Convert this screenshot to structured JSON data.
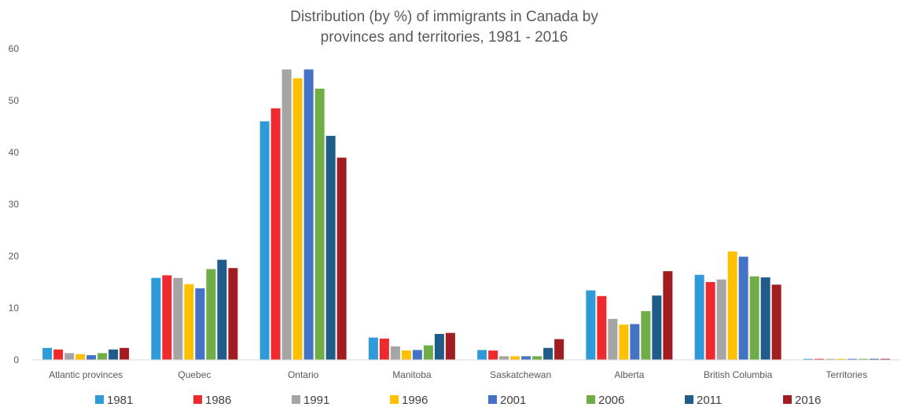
{
  "chart_data": {
    "type": "bar",
    "title": "Distribution (by %) of immigrants in Canada by provinces and territories, 1981 - 2016",
    "title_lines": [
      "Distribution (by %) of immigrants in Canada by",
      "provinces and territories, 1981 - 2016"
    ],
    "xlabel": "",
    "ylabel": "",
    "ylim": [
      0,
      60
    ],
    "yticks": [
      0,
      10,
      20,
      30,
      40,
      50,
      60
    ],
    "grid": false,
    "legend_position": "bottom",
    "categories": [
      "Atlantic provinces",
      "Quebec",
      "Ontario",
      "Manitoba",
      "Saskatchewan",
      "Alberta",
      "British Columbia",
      "Territories"
    ],
    "series": [
      {
        "name": "1981",
        "color": "#2E9AD8",
        "values": [
          2.3,
          15.8,
          46.0,
          4.3,
          1.9,
          13.4,
          16.4,
          0.2
        ]
      },
      {
        "name": "1986",
        "color": "#EE2A2E",
        "values": [
          2.0,
          16.3,
          48.5,
          4.1,
          1.8,
          12.3,
          15.0,
          0.2
        ]
      },
      {
        "name": "1991",
        "color": "#A5A5A5",
        "values": [
          1.3,
          15.8,
          56.0,
          2.6,
          0.7,
          7.9,
          15.5,
          0.2
        ]
      },
      {
        "name": "1996",
        "color": "#FFC000",
        "values": [
          1.1,
          14.6,
          54.3,
          1.8,
          0.7,
          6.8,
          20.9,
          0.2
        ]
      },
      {
        "name": "2001",
        "color": "#4472C4",
        "values": [
          0.9,
          13.8,
          56.0,
          1.9,
          0.7,
          6.9,
          19.9,
          0.2
        ]
      },
      {
        "name": "2006",
        "color": "#70AD47",
        "values": [
          1.3,
          17.5,
          52.3,
          2.8,
          0.7,
          9.4,
          16.1,
          0.2
        ]
      },
      {
        "name": "2011",
        "color": "#1F5C8A",
        "values": [
          2.0,
          19.3,
          43.2,
          5.0,
          2.3,
          12.4,
          15.9,
          0.2
        ]
      },
      {
        "name": "2016",
        "color": "#A11D21",
        "values": [
          2.3,
          17.7,
          39.0,
          5.2,
          4.0,
          17.1,
          14.5,
          0.2
        ]
      }
    ]
  }
}
